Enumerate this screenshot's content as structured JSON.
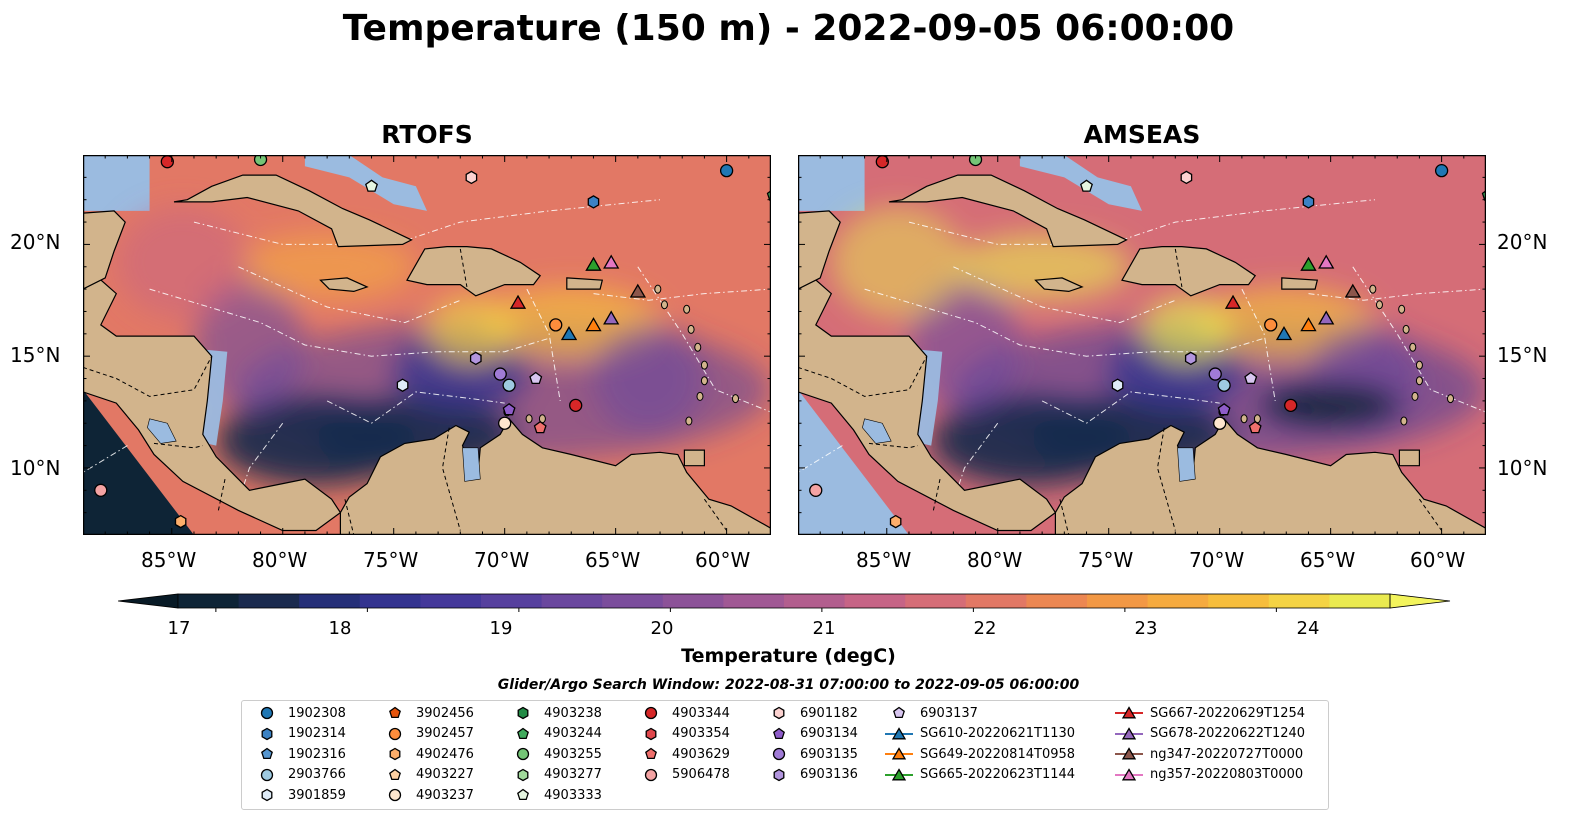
{
  "title": "Temperature (150 m) - 2022-09-05 06:00:00",
  "panels": [
    {
      "title": "RTOFS"
    },
    {
      "title": "AMSEAS"
    }
  ],
  "x_ticks": [
    "85°W",
    "80°W",
    "75°W",
    "70°W",
    "65°W",
    "60°W"
  ],
  "y_ticks": [
    "20°N",
    "15°N",
    "10°N"
  ],
  "colorbar": {
    "label": "Temperature (degC)",
    "ticks": [
      "17",
      "18",
      "19",
      "20",
      "21",
      "22",
      "23",
      "24"
    ],
    "min": 16.75,
    "max": 24.75,
    "colors": [
      "#0e2436",
      "#1a2a4e",
      "#252f78",
      "#33338f",
      "#44389a",
      "#56409e",
      "#6a479e",
      "#7b4d9c",
      "#8c5298",
      "#a05894",
      "#b25e8e",
      "#c66486",
      "#d56d77",
      "#e27865",
      "#ec8752",
      "#f29845",
      "#f5aa3f",
      "#f6bd3c",
      "#f4d344",
      "#eaea50"
    ]
  },
  "legend": {
    "title": "Glider/Argo Search Window: 2022-08-31 07:00:00 to 2022-09-05 06:00:00",
    "items": [
      {
        "label": "1902308",
        "marker": "circle",
        "color": "#1f77b4"
      },
      {
        "label": "1902314",
        "marker": "hexagon",
        "color": "#3b82c4"
      },
      {
        "label": "1902316",
        "marker": "pentagon",
        "color": "#5596d0"
      },
      {
        "label": "2903766",
        "marker": "circle",
        "color": "#9ecae1"
      },
      {
        "label": "3901859",
        "marker": "hexagon",
        "color": "#deebf7"
      },
      {
        "label": "3902456",
        "marker": "pentagon",
        "color": "#e6550d"
      },
      {
        "label": "3902457",
        "marker": "circle",
        "color": "#fd8d3c"
      },
      {
        "label": "4902476",
        "marker": "hexagon",
        "color": "#fdae6b"
      },
      {
        "label": "4903227",
        "marker": "pentagon",
        "color": "#fdd0a2"
      },
      {
        "label": "4903237",
        "marker": "circle",
        "color": "#fee6ce"
      },
      {
        "label": "4903238",
        "marker": "hexagon",
        "color": "#238b45"
      },
      {
        "label": "4903244",
        "marker": "pentagon",
        "color": "#41ab5d"
      },
      {
        "label": "4903255",
        "marker": "circle",
        "color": "#74c476"
      },
      {
        "label": "4903277",
        "marker": "hexagon",
        "color": "#a1d99b"
      },
      {
        "label": "4903333",
        "marker": "pentagon",
        "color": "#e5f5e0"
      },
      {
        "label": "4903344",
        "marker": "circle",
        "color": "#d62728"
      },
      {
        "label": "4903354",
        "marker": "hexagon",
        "color": "#e0474c"
      },
      {
        "label": "4903629",
        "marker": "pentagon",
        "color": "#ef6f6c"
      },
      {
        "label": "5906478",
        "marker": "circle",
        "color": "#f4a3a3"
      },
      {
        "label": "6901182",
        "marker": "hexagon",
        "color": "#fcd2d0"
      },
      {
        "label": "6903134",
        "marker": "pentagon",
        "color": "#8e5cc9"
      },
      {
        "label": "6903135",
        "marker": "circle",
        "color": "#a07bd6"
      },
      {
        "label": "6903136",
        "marker": "hexagon",
        "color": "#b295de"
      },
      {
        "label": "6903137",
        "marker": "pentagon",
        "color": "#d8c6f0"
      },
      {
        "label": "SG610-20220621T1130",
        "marker": "triangle",
        "color": "#1f77b4"
      },
      {
        "label": "SG649-20220814T0958",
        "marker": "triangle",
        "color": "#ff7f0e"
      },
      {
        "label": "SG665-20220623T1144",
        "marker": "triangle",
        "color": "#2ca02c"
      },
      {
        "label": "SG667-20220629T1254",
        "marker": "triangle",
        "color": "#d62728"
      },
      {
        "label": "SG678-20220622T1240",
        "marker": "triangle",
        "color": "#9467bd"
      },
      {
        "label": "ng347-20220727T0000",
        "marker": "triangle",
        "color": "#8c564b"
      },
      {
        "label": "ng357-20220803T0000",
        "marker": "triangle",
        "color": "#e377c2"
      }
    ]
  },
  "map_extent": {
    "lon": [
      -89,
      -58
    ],
    "lat": [
      7,
      24
    ]
  },
  "observations": [
    {
      "id": "1902308",
      "lon": -60.0,
      "lat": 23.3
    },
    {
      "id": "1902314",
      "lon": -66.0,
      "lat": 21.9
    },
    {
      "id": "4903244",
      "lon": -57.9,
      "lat": 22.2
    },
    {
      "id": "4903333",
      "lon": -76.0,
      "lat": 22.6
    },
    {
      "id": "6901182",
      "lon": -71.5,
      "lat": 23.0
    },
    {
      "id": "4903255",
      "lon": -81.0,
      "lat": 23.8
    },
    {
      "id": "4903344",
      "lon": -85.2,
      "lat": 23.7
    },
    {
      "id": "SG665-20220623T1144",
      "lon": -66.0,
      "lat": 19.1
    },
    {
      "id": "ng357-20220803T0000",
      "lon": -65.2,
      "lat": 19.2
    },
    {
      "id": "ng347-20220727T0000",
      "lon": -64.0,
      "lat": 17.9
    },
    {
      "id": "SG667-20220629T1254",
      "lon": -69.4,
      "lat": 17.4
    },
    {
      "id": "3902457",
      "lon": -67.7,
      "lat": 16.4
    },
    {
      "id": "SG610-20220621T1130",
      "lon": -67.1,
      "lat": 16.0
    },
    {
      "id": "SG649-20220814T0958",
      "lon": -66.0,
      "lat": 16.4
    },
    {
      "id": "SG678-20220622T1240",
      "lon": -65.2,
      "lat": 16.7
    },
    {
      "id": "6903136",
      "lon": -71.3,
      "lat": 14.9
    },
    {
      "id": "6903135",
      "lon": -70.2,
      "lat": 14.2
    },
    {
      "id": "2903766",
      "lon": -69.8,
      "lat": 13.7
    },
    {
      "id": "6903137",
      "lon": -68.6,
      "lat": 14.0
    },
    {
      "id": "3901859",
      "lon": -74.6,
      "lat": 13.7
    },
    {
      "id": "4903344",
      "lon": -66.8,
      "lat": 12.8
    },
    {
      "id": "6903134",
      "lon": -69.8,
      "lat": 12.6
    },
    {
      "id": "4903629",
      "lon": -68.4,
      "lat": 11.8
    },
    {
      "id": "4903237",
      "lon": -70.0,
      "lat": 12.0
    },
    {
      "id": "5906478",
      "lon": -88.2,
      "lat": 9.0
    },
    {
      "id": "4902476",
      "lon": -84.6,
      "lat": 7.6
    }
  ]
}
